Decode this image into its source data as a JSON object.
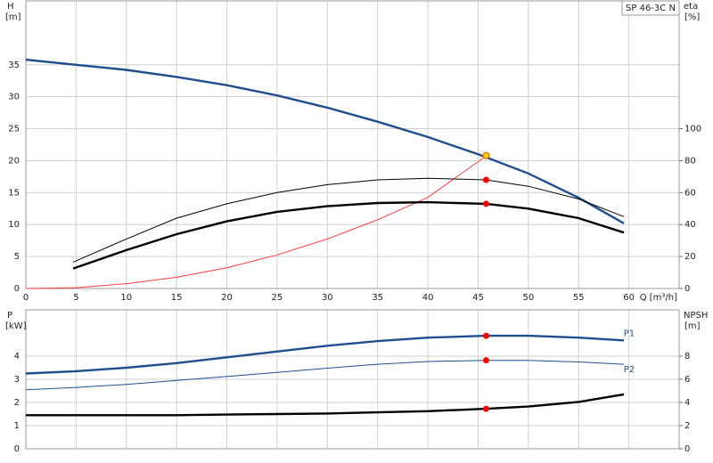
{
  "chart_data": [
    {
      "type": "line",
      "title": "SP 46-3C N",
      "xlabel": "Q [m³/h]",
      "ylabel": "H",
      "yunit": "[m]",
      "y2label": "eta",
      "y2unit": "[%]",
      "xlim": [
        0,
        65
      ],
      "xticks": [
        0,
        5,
        10,
        15,
        20,
        25,
        30,
        35,
        40,
        45,
        50,
        55,
        60
      ],
      "ylim": [
        0,
        45
      ],
      "yticks": [
        0,
        5,
        10,
        15,
        20,
        25,
        30,
        35
      ],
      "y2lim": [
        0,
        180
      ],
      "y2ticks": [
        0,
        20,
        40,
        60,
        80,
        100
      ],
      "grid": true,
      "series": [
        {
          "color": "#1f4e8c",
          "line": "thick",
          "x": [
            0,
            5,
            10,
            15,
            20,
            25,
            30,
            35,
            40,
            45,
            50,
            55,
            59.5
          ],
          "values": [
            35.8,
            35,
            34.2,
            33.1,
            31.8,
            30.2,
            28.3,
            26.1,
            23.7,
            21,
            18,
            14.2,
            10.2
          ]
        },
        {
          "color": "#ff3b3b",
          "line": "thin",
          "axis": "y2",
          "x": [
            0,
            5,
            10,
            15,
            20,
            25,
            30,
            35,
            40,
            45.8
          ],
          "values": [
            0,
            0.5,
            3,
            7,
            13,
            21,
            31,
            43,
            57,
            83
          ]
        },
        {
          "color": "#000000",
          "line": "thin",
          "axis": "y2",
          "x": [
            4.7,
            10,
            15,
            20,
            25,
            30,
            35,
            40,
            45.8,
            50,
            55,
            59.5
          ],
          "values": [
            16.5,
            31,
            44,
            53,
            60,
            65,
            68,
            69,
            68,
            64,
            56,
            45
          ]
        },
        {
          "color": "#000000",
          "line": "thick",
          "axis": "y2",
          "x": [
            4.7,
            10,
            15,
            20,
            25,
            30,
            35,
            40,
            45.8,
            50,
            55,
            59.5
          ],
          "values": [
            12.5,
            24,
            34,
            42,
            48,
            51.5,
            53.5,
            54,
            53,
            50,
            44,
            35
          ]
        },
        {
          "color": "#ffd700",
          "marker": true,
          "x": [
            45.8
          ],
          "values": [
            20.8
          ]
        },
        {
          "color": "#ff0000",
          "marker": true,
          "axis": "y2",
          "x": [
            45.8,
            45.8
          ],
          "values": [
            68,
            53
          ]
        }
      ]
    },
    {
      "type": "line",
      "ylabel": "P",
      "yunit": "[kW]",
      "y2label": "NPSH",
      "y2unit": "[m]",
      "xlim": [
        0,
        65
      ],
      "xticks": [
        0,
        5,
        10,
        15,
        20,
        25,
        30,
        35,
        40,
        45,
        50,
        55,
        60
      ],
      "ylim": [
        0,
        6
      ],
      "yticks": [
        0,
        1,
        2,
        3,
        4
      ],
      "y2lim": [
        0,
        12
      ],
      "y2ticks": [
        0,
        2,
        4,
        6,
        8
      ],
      "grid": true,
      "series": [
        {
          "name": "P1",
          "color": "#1f4e8c",
          "line": "thick",
          "x": [
            0,
            5,
            10,
            15,
            20,
            25,
            30,
            35,
            40,
            45.8,
            50,
            55,
            59.5
          ],
          "values": [
            3.25,
            3.35,
            3.5,
            3.7,
            3.95,
            4.2,
            4.45,
            4.65,
            4.8,
            4.88,
            4.88,
            4.8,
            4.68
          ]
        },
        {
          "name": "P2",
          "color": "#1f4e8c",
          "line": "thin",
          "x": [
            0,
            5,
            10,
            15,
            20,
            25,
            30,
            35,
            40,
            45.8,
            50,
            55,
            59.5
          ],
          "values": [
            2.55,
            2.65,
            2.78,
            2.95,
            3.12,
            3.3,
            3.48,
            3.65,
            3.77,
            3.82,
            3.82,
            3.75,
            3.65
          ]
        },
        {
          "color": "#000000",
          "line": "thick",
          "axis": "y2",
          "x": [
            0,
            5,
            10,
            15,
            20,
            25,
            30,
            35,
            40,
            45.8,
            50,
            55,
            59.5
          ],
          "values": [
            2.9,
            2.9,
            2.9,
            2.9,
            2.95,
            3,
            3.05,
            3.15,
            3.25,
            3.45,
            3.65,
            4.05,
            4.7
          ]
        },
        {
          "color": "#ff0000",
          "marker": true,
          "x": [
            45.8,
            45.8
          ],
          "values": [
            4.88,
            3.82
          ]
        },
        {
          "color": "#ff0000",
          "marker": true,
          "axis": "y2",
          "x": [
            45.8
          ],
          "values": [
            3.45
          ]
        }
      ]
    }
  ]
}
